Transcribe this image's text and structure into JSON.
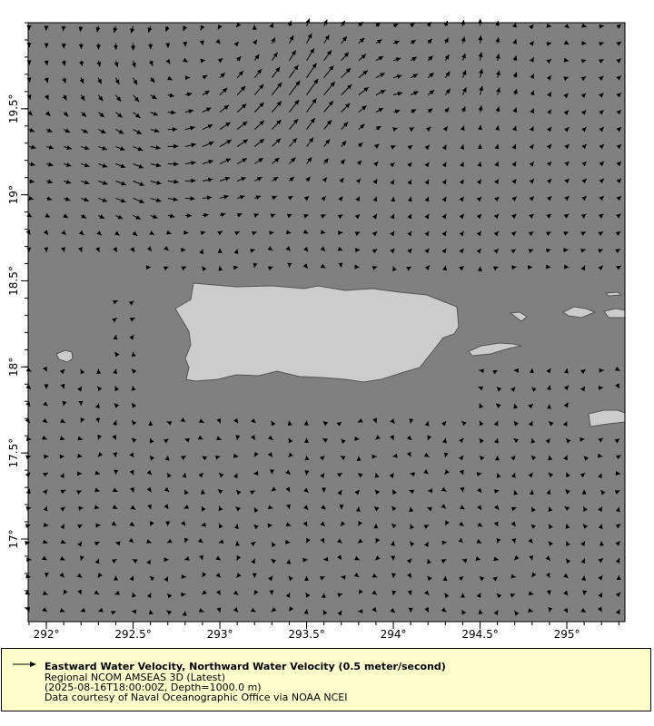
{
  "chart_data": {
    "type": "vector",
    "title": "Eastward Water Velocity, Northward Water Velocity (0.5 meter/second)",
    "xlim": [
      291.895,
      295.335
    ],
    "ylim": [
      16.52,
      20.0
    ],
    "x_ticks": [
      292,
      292.5,
      293,
      293.5,
      294,
      294.5,
      295
    ],
    "x_tick_labels": [
      "292°",
      "292.5°",
      "293°",
      "293.5°",
      "294°",
      "294.5°",
      "295°"
    ],
    "y_ticks": [
      17,
      17.5,
      18,
      18.5,
      19,
      19.5
    ],
    "y_tick_labels": [
      "17°",
      "17.5°",
      "18°",
      "18.5°",
      "19°",
      "19.5°"
    ],
    "reference_vector_m_per_s": 0.5,
    "vector_grid_spacing_deg": 0.1,
    "field_lons": [
      291.9,
      292.5,
      293.0,
      293.5,
      294.0,
      294.5,
      295.0,
      295.35
    ],
    "field_lats": [
      20.0,
      19.6,
      19.3,
      19.0,
      18.7,
      18.4,
      17.8,
      17.2,
      16.5
    ],
    "u": [
      [
        0.0,
        -0.05,
        -0.05,
        0.05,
        0.1,
        0.0,
        0.05,
        0.05
      ],
      [
        0.02,
        0.12,
        0.15,
        0.25,
        0.2,
        0.05,
        0.03,
        0.05
      ],
      [
        0.15,
        0.2,
        0.25,
        0.15,
        0.05,
        0.0,
        0.05,
        0.05
      ],
      [
        0.1,
        0.25,
        0.2,
        0.05,
        0.0,
        0.03,
        0.05,
        0.05
      ],
      [
        0.0,
        0.03,
        0.0,
        0.03,
        0.03,
        0.02,
        0.03,
        0.03
      ],
      [
        0.02,
        0.03,
        -0.02,
        0.02,
        -0.03,
        0.02,
        0.02,
        0.03
      ],
      [
        0.03,
        -0.03,
        0.04,
        -0.03,
        0.03,
        -0.03,
        0.02,
        0.03
      ],
      [
        0.03,
        0.03,
        -0.03,
        0.03,
        -0.03,
        0.04,
        -0.03,
        0.03
      ],
      [
        0.02,
        -0.03,
        0.03,
        -0.02,
        0.03,
        -0.02,
        0.03,
        0.02
      ]
    ],
    "v": [
      [
        -0.08,
        -0.15,
        -0.08,
        0.15,
        0.05,
        0.15,
        -0.05,
        0.05
      ],
      [
        -0.1,
        -0.15,
        0.15,
        0.35,
        0.05,
        0.2,
        0.03,
        0.05
      ],
      [
        -0.03,
        -0.08,
        0.15,
        0.2,
        0.02,
        0.05,
        0.05,
        0.05
      ],
      [
        -0.02,
        -0.1,
        0.05,
        0.05,
        0.03,
        0.03,
        0.05,
        0.05
      ],
      [
        -0.05,
        -0.05,
        0.03,
        -0.04,
        0.03,
        0.03,
        0.0,
        0.02
      ],
      [
        0.03,
        0.03,
        0.03,
        -0.03,
        0.03,
        -0.03,
        0.03,
        0.02
      ],
      [
        -0.03,
        0.03,
        -0.03,
        0.03,
        -0.03,
        0.03,
        0.03,
        -0.03
      ],
      [
        0.03,
        -0.03,
        0.03,
        -0.03,
        0.03,
        -0.03,
        0.03,
        0.03
      ],
      [
        -0.03,
        0.03,
        -0.03,
        0.03,
        -0.03,
        0.03,
        -0.03,
        0.03
      ]
    ],
    "grid": false
  },
  "colors": {
    "ocean": "#808080",
    "land": "#cccccc",
    "coastline": "#555555",
    "vectors": "#000000",
    "legend_bg": "#ffffcc"
  },
  "legend": {
    "title": "Eastward Water Velocity, Northward Water Velocity (0.5 meter/second)",
    "dataset": "Regional NCOM AMSEAS 3D (Latest)",
    "time_depth": "(2025-08-16T18:00:00Z, Depth=1000.0 m)",
    "credit": "Data courtesy of Naval Oceanographic Office via NOAA NCEI"
  }
}
